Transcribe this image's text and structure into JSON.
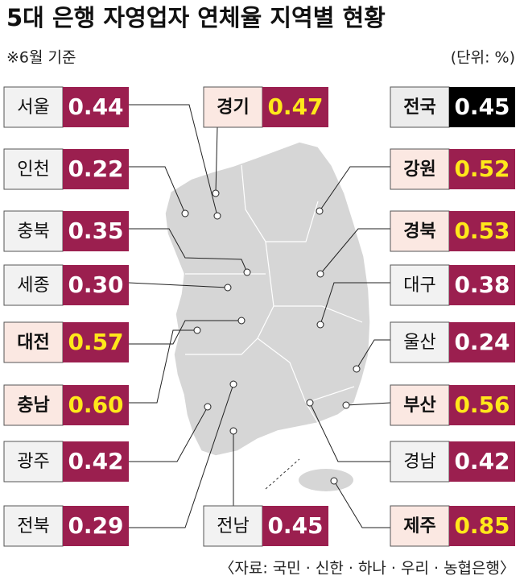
{
  "title": "5대 은행 자영업자 연체율 지역별 현황",
  "subtitle": "※6월 기준",
  "unit": "(단위: %)",
  "source": "〈자료: 국민 · 신한 · 하나 · 우리 · 농협은행〉",
  "national": {
    "name": "전국",
    "value": 0.45,
    "label": "0.45"
  },
  "regions": [
    {
      "name": "서울",
      "value": 0.44,
      "label": "0.44"
    },
    {
      "name": "인천",
      "value": 0.22,
      "label": "0.22"
    },
    {
      "name": "충북",
      "value": 0.35,
      "label": "0.35"
    },
    {
      "name": "세종",
      "value": 0.3,
      "label": "0.30"
    },
    {
      "name": "대전",
      "value": 0.57,
      "label": "0.57"
    },
    {
      "name": "충남",
      "value": 0.6,
      "label": "0.60"
    },
    {
      "name": "광주",
      "value": 0.42,
      "label": "0.42"
    },
    {
      "name": "전북",
      "value": 0.29,
      "label": "0.29"
    },
    {
      "name": "경기",
      "value": 0.47,
      "label": "0.47"
    },
    {
      "name": "전남",
      "value": 0.45,
      "label": "0.45"
    },
    {
      "name": "강원",
      "value": 0.52,
      "label": "0.52"
    },
    {
      "name": "경북",
      "value": 0.53,
      "label": "0.53"
    },
    {
      "name": "대구",
      "value": 0.38,
      "label": "0.38"
    },
    {
      "name": "울산",
      "value": 0.24,
      "label": "0.24"
    },
    {
      "name": "부산",
      "value": 0.56,
      "label": "0.56"
    },
    {
      "name": "경남",
      "value": 0.42,
      "label": "0.42"
    },
    {
      "name": "제주",
      "value": 0.85,
      "label": "0.85"
    }
  ]
}
